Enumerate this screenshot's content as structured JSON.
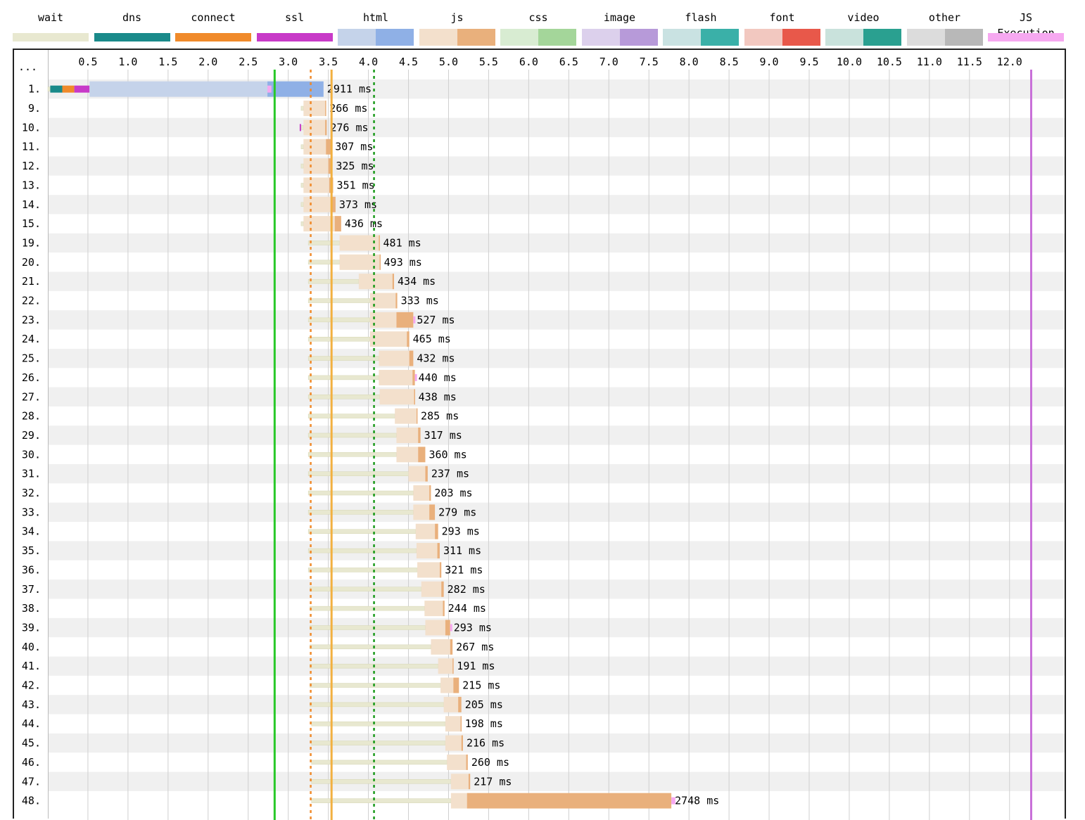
{
  "legend": [
    {
      "label": "wait",
      "key": "wait",
      "color": "#e8e8d0"
    },
    {
      "label": "dns",
      "key": "dns",
      "color": "#1a8a8a"
    },
    {
      "label": "connect",
      "key": "connect",
      "color": "#f08a2a"
    },
    {
      "label": "ssl",
      "key": "ssl",
      "color": "#c83ac8"
    },
    {
      "label": "html",
      "key": "html",
      "color_req": "#c5d3ea",
      "color_dl": "#8fb0e6"
    },
    {
      "label": "js",
      "key": "js",
      "color_req": "#f3e0cc",
      "color_dl": "#e9b07c"
    },
    {
      "label": "css",
      "key": "css",
      "color_req": "#d8ecd2",
      "color_dl": "#a4d69a"
    },
    {
      "label": "image",
      "key": "image",
      "color_req": "#dcd0ec",
      "color_dl": "#b79ad9"
    },
    {
      "label": "flash",
      "key": "flash",
      "color_req": "#c9e2e2",
      "color_dl": "#3ab0a8"
    },
    {
      "label": "font",
      "key": "font",
      "color_req": "#f2c8c0",
      "color_dl": "#e8584a"
    },
    {
      "label": "video",
      "key": "video",
      "color_req": "#c9e2dc",
      "color_dl": "#2aa090"
    },
    {
      "label": "other",
      "key": "other",
      "color_req": "#dcdcdc",
      "color_dl": "#b8b8b8"
    },
    {
      "label": "JS Execution",
      "key": "jsexec",
      "color": "#f6a8f0"
    }
  ],
  "header_dots": "...",
  "chart_data": {
    "type": "waterfall",
    "x_unit": "seconds",
    "xlim": [
      0,
      12.45
    ],
    "ticks": [
      0.5,
      1.0,
      1.5,
      2.0,
      2.5,
      3.0,
      3.5,
      4.0,
      4.5,
      5.0,
      5.5,
      6.0,
      6.5,
      7.0,
      7.5,
      8.0,
      8.5,
      9.0,
      9.5,
      10.0,
      10.5,
      11.0,
      11.5,
      12.0
    ],
    "grid": true,
    "markers": [
      {
        "t": 2.83,
        "color": "#28c828",
        "style": "solid"
      },
      {
        "t": 3.28,
        "color": "#f08a2a",
        "style": "dashed"
      },
      {
        "t": 3.54,
        "color": "#f2b040",
        "style": "solid"
      },
      {
        "t": 4.07,
        "color": "#1a9a1a",
        "style": "dashed"
      },
      {
        "t": 12.27,
        "color": "#c870d8",
        "style": "solid"
      }
    ],
    "rows": [
      {
        "label": "1.",
        "wait": [
          0,
          0.03
        ],
        "dns": [
          0.03,
          0.18
        ],
        "connect": [
          0.18,
          0.33
        ],
        "ssl": [
          0.33,
          0.52
        ],
        "req": [
          0.52,
          2.74
        ],
        "dl": [
          2.74,
          3.44
        ],
        "type": "html",
        "exec": [
          2.74,
          2.79
        ],
        "text": "2911 ms"
      },
      {
        "label": "9.",
        "wait": [
          3.16,
          3.19
        ],
        "req": [
          3.19,
          3.46
        ],
        "dl": [
          3.46,
          3.47
        ],
        "type": "js",
        "text": "266 ms"
      },
      {
        "label": "10.",
        "wait": [
          3.16,
          3.19
        ],
        "req": [
          3.19,
          3.46
        ],
        "dl": [
          3.46,
          3.48
        ],
        "type": "js",
        "ssl_tick": true,
        "text": "276 ms"
      },
      {
        "label": "11.",
        "wait": [
          3.16,
          3.19
        ],
        "req": [
          3.19,
          3.47
        ],
        "dl": [
          3.47,
          3.54
        ],
        "type": "js",
        "text": "307 ms"
      },
      {
        "label": "12.",
        "wait": [
          3.16,
          3.19
        ],
        "req": [
          3.19,
          3.5
        ],
        "dl": [
          3.5,
          3.55
        ],
        "type": "js",
        "text": "325 ms"
      },
      {
        "label": "13.",
        "wait": [
          3.16,
          3.19
        ],
        "req": [
          3.19,
          3.51
        ],
        "dl": [
          3.51,
          3.56
        ],
        "type": "js",
        "text": "351 ms"
      },
      {
        "label": "14.",
        "wait": [
          3.16,
          3.19
        ],
        "req": [
          3.19,
          3.53
        ],
        "dl": [
          3.53,
          3.59
        ],
        "type": "js",
        "text": "373 ms"
      },
      {
        "label": "15.",
        "wait": [
          3.16,
          3.19
        ],
        "req": [
          3.19,
          3.58
        ],
        "dl": [
          3.58,
          3.66
        ],
        "type": "js",
        "text": "436 ms"
      },
      {
        "label": "19.",
        "wait": [
          3.25,
          3.64
        ],
        "req": [
          3.64,
          4.13
        ],
        "dl": [
          4.13,
          4.14
        ],
        "type": "js",
        "text": "481 ms"
      },
      {
        "label": "20.",
        "wait": [
          3.25,
          3.64
        ],
        "req": [
          3.64,
          4.14
        ],
        "dl": [
          4.14,
          4.15
        ],
        "type": "js",
        "text": "493 ms"
      },
      {
        "label": "21.",
        "wait": [
          3.25,
          3.88
        ],
        "req": [
          3.88,
          4.3
        ],
        "dl": [
          4.3,
          4.32
        ],
        "type": "js",
        "text": "434 ms"
      },
      {
        "label": "22.",
        "wait": [
          3.25,
          4.02
        ],
        "req": [
          4.02,
          4.34
        ],
        "dl": [
          4.34,
          4.36
        ],
        "type": "js",
        "text": "333 ms"
      },
      {
        "label": "23.",
        "wait": [
          3.25,
          4.02
        ],
        "req": [
          4.02,
          4.35
        ],
        "dl": [
          4.35,
          4.56
        ],
        "type": "js",
        "exec": [
          4.56,
          4.58
        ],
        "text": "527 ms"
      },
      {
        "label": "24.",
        "wait": [
          3.25,
          4.02
        ],
        "req": [
          4.02,
          4.48
        ],
        "dl": [
          4.48,
          4.51
        ],
        "type": "js",
        "text": "465 ms"
      },
      {
        "label": "25.",
        "wait": [
          3.25,
          4.13
        ],
        "req": [
          4.13,
          4.51
        ],
        "dl": [
          4.51,
          4.56
        ],
        "type": "js",
        "text": "432 ms"
      },
      {
        "label": "26.",
        "wait": [
          3.25,
          4.13
        ],
        "req": [
          4.13,
          4.55
        ],
        "dl": [
          4.55,
          4.58
        ],
        "type": "js",
        "exec": [
          4.58,
          4.6
        ],
        "text": "440 ms"
      },
      {
        "label": "27.",
        "wait": [
          3.25,
          4.14
        ],
        "req": [
          4.14,
          4.57
        ],
        "dl": [
          4.57,
          4.58
        ],
        "type": "js",
        "text": "438 ms"
      },
      {
        "label": "28.",
        "wait": [
          3.25,
          4.33
        ],
        "req": [
          4.33,
          4.6
        ],
        "dl": [
          4.6,
          4.61
        ],
        "type": "js",
        "text": "285 ms"
      },
      {
        "label": "29.",
        "wait": [
          3.25,
          4.35
        ],
        "req": [
          4.35,
          4.62
        ],
        "dl": [
          4.62,
          4.65
        ],
        "type": "js",
        "text": "317 ms"
      },
      {
        "label": "30.",
        "wait": [
          3.25,
          4.35
        ],
        "req": [
          4.35,
          4.62
        ],
        "dl": [
          4.62,
          4.71
        ],
        "type": "js",
        "text": "360 ms"
      },
      {
        "label": "31.",
        "wait": [
          3.25,
          4.5
        ],
        "req": [
          4.5,
          4.71
        ],
        "dl": [
          4.71,
          4.74
        ],
        "type": "js",
        "text": "237 ms"
      },
      {
        "label": "32.",
        "wait": [
          3.25,
          4.56
        ],
        "req": [
          4.56,
          4.76
        ],
        "dl": [
          4.76,
          4.78
        ],
        "type": "js",
        "text": "203 ms"
      },
      {
        "label": "33.",
        "wait": [
          3.25,
          4.56
        ],
        "req": [
          4.56,
          4.76
        ],
        "dl": [
          4.76,
          4.83
        ],
        "type": "js",
        "text": "279 ms"
      },
      {
        "label": "34.",
        "wait": [
          3.25,
          4.59
        ],
        "req": [
          4.59,
          4.83
        ],
        "dl": [
          4.83,
          4.87
        ],
        "type": "js",
        "text": "293 ms"
      },
      {
        "label": "35.",
        "wait": [
          3.25,
          4.6
        ],
        "req": [
          4.6,
          4.86
        ],
        "dl": [
          4.86,
          4.89
        ],
        "type": "js",
        "text": "311 ms"
      },
      {
        "label": "36.",
        "wait": [
          3.25,
          4.61
        ],
        "req": [
          4.61,
          4.89
        ],
        "dl": [
          4.89,
          4.91
        ],
        "type": "js",
        "text": "321 ms"
      },
      {
        "label": "37.",
        "wait": [
          3.27,
          4.66
        ],
        "req": [
          4.66,
          4.91
        ],
        "dl": [
          4.91,
          4.94
        ],
        "type": "js",
        "text": "282 ms"
      },
      {
        "label": "38.",
        "wait": [
          3.27,
          4.7
        ],
        "req": [
          4.7,
          4.93
        ],
        "dl": [
          4.93,
          4.95
        ],
        "type": "js",
        "text": "244 ms"
      },
      {
        "label": "39.",
        "wait": [
          3.27,
          4.71
        ],
        "req": [
          4.71,
          4.96
        ],
        "dl": [
          4.96,
          5.02
        ],
        "type": "js",
        "exec": [
          5.02,
          5.04
        ],
        "text": "293 ms"
      },
      {
        "label": "40.",
        "wait": [
          3.27,
          4.78
        ],
        "req": [
          4.78,
          5.02
        ],
        "dl": [
          5.02,
          5.05
        ],
        "type": "js",
        "text": "267 ms"
      },
      {
        "label": "41.",
        "wait": [
          3.27,
          4.87
        ],
        "req": [
          4.87,
          5.05
        ],
        "dl": [
          5.05,
          5.06
        ],
        "type": "js",
        "text": "191 ms"
      },
      {
        "label": "42.",
        "wait": [
          3.27,
          4.9
        ],
        "req": [
          4.9,
          5.06
        ],
        "dl": [
          5.06,
          5.13
        ],
        "type": "js",
        "text": "215 ms"
      },
      {
        "label": "43.",
        "wait": [
          3.27,
          4.94
        ],
        "req": [
          4.94,
          5.12
        ],
        "dl": [
          5.12,
          5.16
        ],
        "type": "js",
        "text": "205 ms"
      },
      {
        "label": "44.",
        "wait": [
          3.29,
          4.96
        ],
        "req": [
          4.96,
          5.15
        ],
        "dl": [
          5.15,
          5.16
        ],
        "type": "js",
        "text": "198 ms"
      },
      {
        "label": "45.",
        "wait": [
          3.29,
          4.96
        ],
        "req": [
          4.96,
          5.16
        ],
        "dl": [
          5.16,
          5.18
        ],
        "type": "js",
        "text": "216 ms"
      },
      {
        "label": "46.",
        "wait": [
          3.29,
          4.98
        ],
        "req": [
          4.98,
          5.22
        ],
        "dl": [
          5.22,
          5.24
        ],
        "type": "js",
        "text": "260 ms"
      },
      {
        "label": "47.",
        "wait": [
          3.29,
          5.03
        ],
        "req": [
          5.03,
          5.25
        ],
        "dl": [
          5.25,
          5.27
        ],
        "type": "js",
        "text": "217 ms"
      },
      {
        "label": "48.",
        "wait": [
          3.29,
          5.03
        ],
        "req": [
          5.03,
          5.23
        ],
        "dl": [
          5.23,
          7.78
        ],
        "type": "js",
        "exec": [
          7.78,
          7.83
        ],
        "text": "2748 ms"
      }
    ]
  }
}
